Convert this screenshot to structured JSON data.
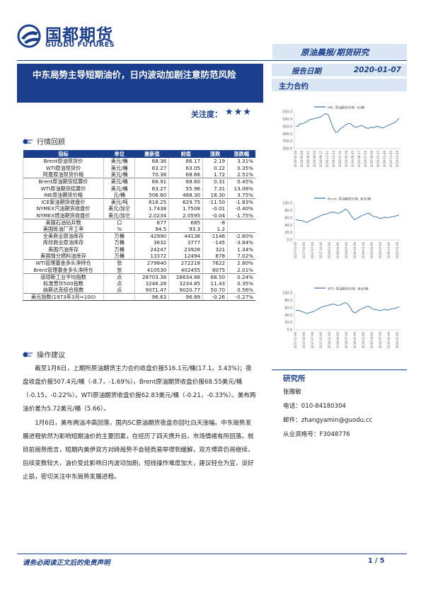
{
  "brand": {
    "name_cn": "国都期货",
    "name_en": "GUODU FUTURES",
    "color": "#1b3f8c"
  },
  "header": {
    "report_type": "原油晨报/期货研究"
  },
  "title": "中东局势主导短期油价，日内波动加剧注意防范风险",
  "attention": {
    "label": "关注度：",
    "stars": "★★★"
  },
  "report_date": {
    "label": "报告日期",
    "value": "2020-01-07"
  },
  "main_contract_label": "主力合约",
  "section1": "行情回顾",
  "section2": "操作建议",
  "table": {
    "headers": [
      "指标",
      "单位",
      "最新值",
      "前值",
      "涨跌",
      "涨跌幅"
    ],
    "rows": [
      [
        "Brent原油现货价",
        "美元/桶",
        "68.36",
        "66.17",
        "2.19",
        "3.31%"
      ],
      [
        "WTI原油现货价",
        "美元/桶",
        "63.27",
        "63.05",
        "0.22",
        "0.35%"
      ],
      [
        "阿曼原油现货价格",
        "美元/桶",
        "70.38",
        "68.66",
        "1.72",
        "2.51%"
      ],
      [
        "Brent原油期货结算价",
        "美元/桶",
        "68.91",
        "68.60",
        "0.31",
        "0.45%"
      ],
      [
        "WTI原油期货结算价",
        "美元/桶",
        "63.27",
        "55.96",
        "7.31",
        "13.06%"
      ],
      [
        "INE原油期货价格",
        "元/桶",
        "506.60",
        "488.30",
        "18.30",
        "3.75%"
      ],
      [
        "ICE柴油期货收盘价",
        "美元/吨",
        "618.25",
        "629.75",
        "-11.50",
        "-1.83%"
      ],
      [
        "NYMEX汽油期货收盘价",
        "美元/加仑",
        "1.7438",
        "1.7508",
        "-0.01",
        "-0.40%"
      ],
      [
        "NYMEX燃油期货收盘价",
        "美元/加仑",
        "2.0234",
        "2.0595",
        "-0.04",
        "-1.75%"
      ],
      [
        "美国石油钻井数",
        "口",
        "677",
        "685",
        "-8",
        ""
      ],
      [
        "美国炼油厂开工率",
        "%",
        "94.5",
        "93.3",
        "1.2",
        ""
      ],
      [
        "全美商业原油库存",
        "万桶",
        "42990",
        "44136",
        "-1146",
        "-2.60%"
      ],
      [
        "库欣商业原油库存",
        "万桶",
        "3632",
        "3777",
        "-145",
        "-3.84%"
      ],
      [
        "美国汽油库存",
        "万桶",
        "24247",
        "23926",
        "321",
        "1.34%"
      ],
      [
        "美国馏分燃料油库存",
        "万桶",
        "13372",
        "12494",
        "878",
        "7.02%"
      ],
      [
        "WTI管理基金多头净持仓",
        "张",
        "279840",
        "272218",
        "7622",
        "2.80%"
      ],
      [
        "Brent管理基金多头净持仓",
        "张",
        "410530",
        "402455",
        "8075",
        "2.01%"
      ],
      [
        "道琼斯工业平均指数",
        "点",
        "28703.38",
        "28634.88",
        "68.50",
        "0.24%"
      ],
      [
        "标准普尔500指数",
        "点",
        "3246.28",
        "3234.85",
        "11.43",
        "0.35%"
      ],
      [
        "纳斯达克综合指数",
        "点",
        "9071.47",
        "9020.77",
        "50.70",
        "0.56%"
      ],
      [
        "美元指数(1973年3月=100)",
        "",
        "96.63",
        "96.89",
        "-0.26",
        "-0.27%"
      ]
    ]
  },
  "paragraphs": [
    "截至1月6日，上期所原油期货主力合约收盘价报516.1元/桶(17.1，3.43%)；夜盘收盘价报507.4元/桶（-8.7，-1.69%）。Brent原油期货收盘价报68.55美元/桶（-0.15，-0.22%）。WTI原油期货收盘价报62.83美元/桶（-0.21，-0.33%）。美布两油价差为5.72美元/桶（5.66）。",
    "1月6日，美布两油冲高回落，国内SC原油期货夜盘亦回吐白天涨幅。中东局势发展进程依然为影响短期油价的主要因素，在经历了四天携升后，市场情绪有所回落。就目前局势而言，短期内美伊双方对峙局势不会轻而易举得到缓解，双方博弈仍将继续，后续变数较大，油价受此影响日内波动加剧，短线操作难度加大，建议轻仓为宜，设好止损，密切关注中东局势发展进程。"
  ],
  "charts": [
    {
      "legend": "INE: 原油期货价格: 元/桶",
      "yticks": [
        "550.0",
        "500.0",
        "450.0",
        "400.0",
        "350.0",
        "300.0"
      ],
      "ylim": [
        300,
        550
      ],
      "xticks": [
        "2018-03-26",
        "2018-05-08",
        "2018-06-21",
        "2018-08-03",
        "2018-09-17",
        "2018-11-01",
        "2018-12-14",
        "2019-01-30",
        "2019-03-19",
        "2019-05-05",
        "2019-06-17",
        "2019-07-29",
        "2019-09-06",
        "2019-10-25",
        "2019-12-06",
        "2019-11-25",
        "2019-12-28"
      ],
      "series": [
        455,
        452,
        470,
        468,
        480,
        485,
        498,
        500,
        505,
        508,
        512,
        520,
        532,
        538,
        525,
        480,
        440,
        410,
        415,
        435,
        445,
        460,
        468,
        472,
        460,
        448,
        445,
        452,
        458,
        450,
        440,
        438,
        445,
        442,
        448,
        452,
        445,
        440,
        448,
        455,
        462,
        470,
        475,
        490,
        507
      ]
    },
    {
      "legend": "Brent: 原油期货价格: 美元/桶",
      "yticks": [
        "100.0",
        "80.0",
        "60.0",
        "40.0",
        "20.0",
        "0.0"
      ],
      "ylim": [
        0,
        100
      ],
      "xticks": [
        "2017-01-06",
        "2017-04-06",
        "2017-07-06",
        "2017-10-06",
        "2018-01-06",
        "2018-04-06",
        "2018-07-06",
        "2018-10-06",
        "2019-01-06",
        "2019-04-06",
        "2019-07-06",
        "2019-10-06",
        "2020-01-06"
      ],
      "series": [
        55,
        54,
        53,
        52,
        49,
        48,
        52,
        55,
        58,
        61,
        64,
        67,
        69,
        70,
        73,
        75,
        76,
        74,
        72,
        75,
        78,
        84,
        80,
        72,
        62,
        55,
        58,
        62,
        66,
        68,
        71,
        73,
        68,
        64,
        63,
        61,
        58,
        60,
        62,
        60,
        62,
        63,
        64,
        66,
        68
      ]
    },
    {
      "legend": "WTI: 原油期货价格: 美元/桶",
      "yticks": [
        "100.0",
        "80.0",
        "60.0",
        "40.0",
        "20.0",
        "0.0"
      ],
      "ylim": [
        0,
        100
      ],
      "xticks": [
        "2017-01-06",
        "2017-04-06",
        "2017-07-06",
        "2017-10-06",
        "2018-01-06",
        "2018-04-06",
        "2018-07-06",
        "2018-10-06",
        "2019-01-06",
        "2019-04-06",
        "2019-07-06",
        "2019-10-06",
        "2020-01-06"
      ],
      "series": [
        52,
        53,
        51,
        49,
        46,
        45,
        47,
        49,
        51,
        55,
        58,
        62,
        64,
        65,
        67,
        69,
        70,
        68,
        66,
        68,
        71,
        74,
        71,
        63,
        52,
        46,
        49,
        54,
        57,
        60,
        63,
        64,
        60,
        56,
        55,
        54,
        52,
        54,
        56,
        53,
        56,
        57,
        58,
        60,
        63
      ]
    }
  ],
  "institute": {
    "title": "研究所",
    "name": "张雅敏",
    "phone": "电话：010-84180304",
    "email": "邮件：zhangyamin@guodu.cc",
    "license": "从业资格号：F3048776"
  },
  "footer": {
    "disclaimer": "请务必阅读正文后的免责声明",
    "page": "1 / 5"
  }
}
